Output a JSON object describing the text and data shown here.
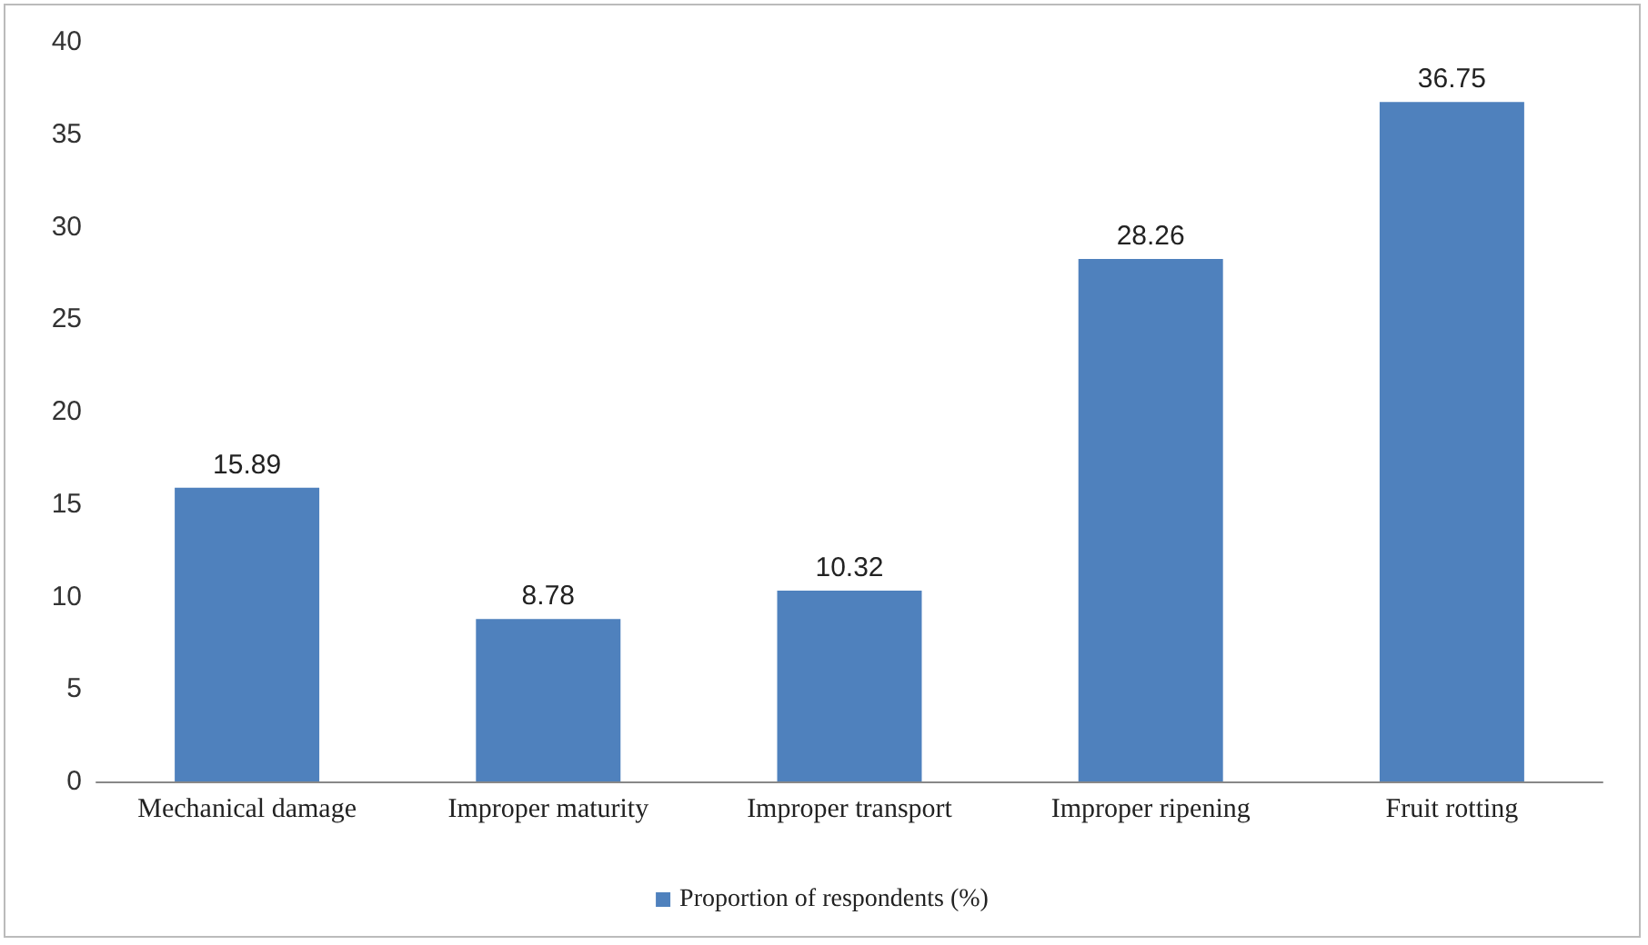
{
  "chart_data": {
    "type": "bar",
    "categories": [
      "Mechanical damage",
      "Improper maturity",
      "Improper transport",
      "Improper ripening",
      "Fruit rotting"
    ],
    "series": [
      {
        "name": "Proportion of respondents (%)",
        "color": "#4f81bd",
        "values": [
          15.89,
          8.78,
          10.32,
          28.26,
          36.75
        ]
      }
    ],
    "ylim": [
      0,
      40
    ],
    "yticks": [
      0,
      5,
      10,
      15,
      20,
      25,
      30,
      35,
      40
    ],
    "data_labels": true,
    "grid": false,
    "legend": "bottom"
  }
}
